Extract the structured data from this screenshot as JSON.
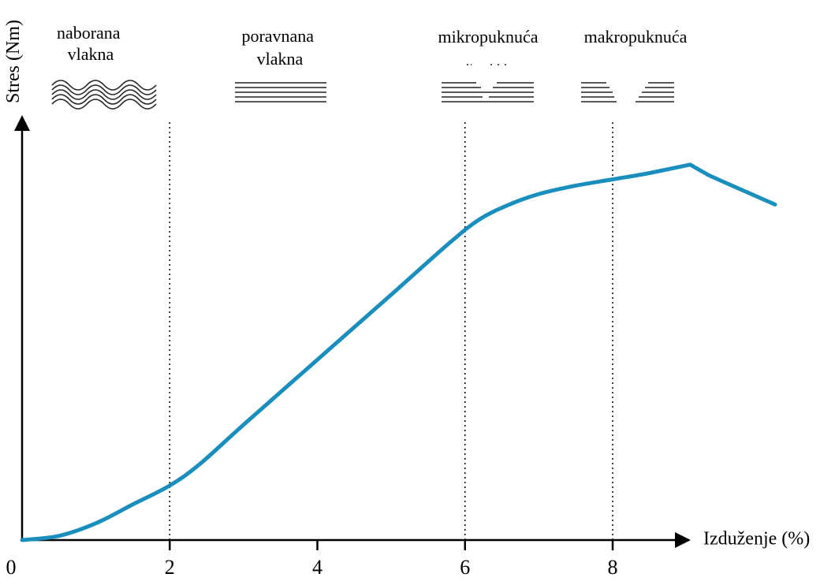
{
  "chart_data": {
    "type": "line",
    "xlabel": "Izduženje (%)",
    "ylabel": "Stres (Nm)",
    "xlim": [
      0,
      10.2
    ],
    "ylim": [
      0,
      10
    ],
    "x_ticks": [
      0,
      2,
      4,
      6,
      8
    ],
    "x_tick_labels": [
      "0",
      "2",
      "4",
      "6",
      "8"
    ],
    "y_ticks_shown": false,
    "grid": false,
    "guide_lines_x": [
      2,
      6,
      8
    ],
    "color": "#1a8fbe",
    "series": [
      {
        "x": [
          0,
          0.5,
          1.0,
          1.5,
          2.0,
          2.4,
          3.0,
          4.0,
          5.0,
          5.8,
          6.2,
          6.6,
          7.0,
          7.5,
          8.0,
          8.5,
          9.05,
          9.3,
          10.2
        ],
        "y": [
          0,
          0.1,
          0.4,
          0.85,
          1.3,
          1.8,
          2.75,
          4.3,
          5.85,
          7.1,
          7.65,
          8.0,
          8.25,
          8.45,
          8.6,
          8.75,
          8.95,
          8.7,
          8.0
        ]
      }
    ],
    "annotations": [
      {
        "text": [
          "naborana",
          "vlakna"
        ],
        "icon": "crimped-fibers-icon"
      },
      {
        "text": [
          "poravnana",
          "vlakna"
        ],
        "icon": "aligned-fibers-icon"
      },
      {
        "text": [
          "mikropuknuća"
        ],
        "icon": "microtears-icon"
      },
      {
        "text": [
          "makropuknuća"
        ],
        "icon": "macrotears-icon"
      }
    ]
  }
}
